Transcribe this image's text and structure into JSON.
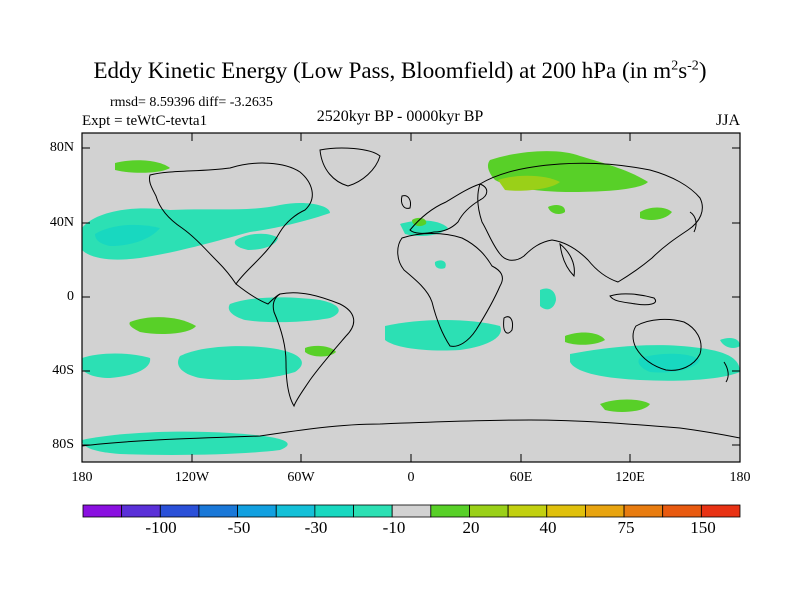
{
  "title": {
    "main": "Eddy Kinetic Energy (Low Pass, Bloomfield) at 200 hPa (in m",
    "sup1": "2",
    "mid": "s",
    "sup2": "-2",
    "end": ")"
  },
  "stats": "rmsd= 8.59396 diff= -3.2635",
  "experiment": "Expt = teWtC-tevta1",
  "period": "2520kyr BP - 0000kyr BP",
  "season": "JJA",
  "lat_labels": [
    "80N",
    "40N",
    "0",
    "40S",
    "80S"
  ],
  "lon_labels": [
    "180",
    "120W",
    "60W",
    "0",
    "60E",
    "120E",
    "180"
  ],
  "colorbar": {
    "colors": [
      "#8a10e0",
      "#5a30d8",
      "#2a50d8",
      "#1a78d8",
      "#12a0e0",
      "#14c0d8",
      "#18d8c0",
      "#2ce0b4",
      "#d2d2d2",
      "#58d028",
      "#9ad018",
      "#c2d010",
      "#e0c00c",
      "#e8a410",
      "#e87c10",
      "#e85a10",
      "#e83214"
    ],
    "labels": [
      "-100",
      "-50",
      "-30",
      "-10",
      "20",
      "40",
      "75",
      "150"
    ]
  },
  "colors": {
    "land_background": "#d2d2d2",
    "negative_small": "#2ce0b4",
    "negative_mid": "#18d8c0",
    "positive_small": "#58d028",
    "positive_mid": "#9ad018"
  }
}
